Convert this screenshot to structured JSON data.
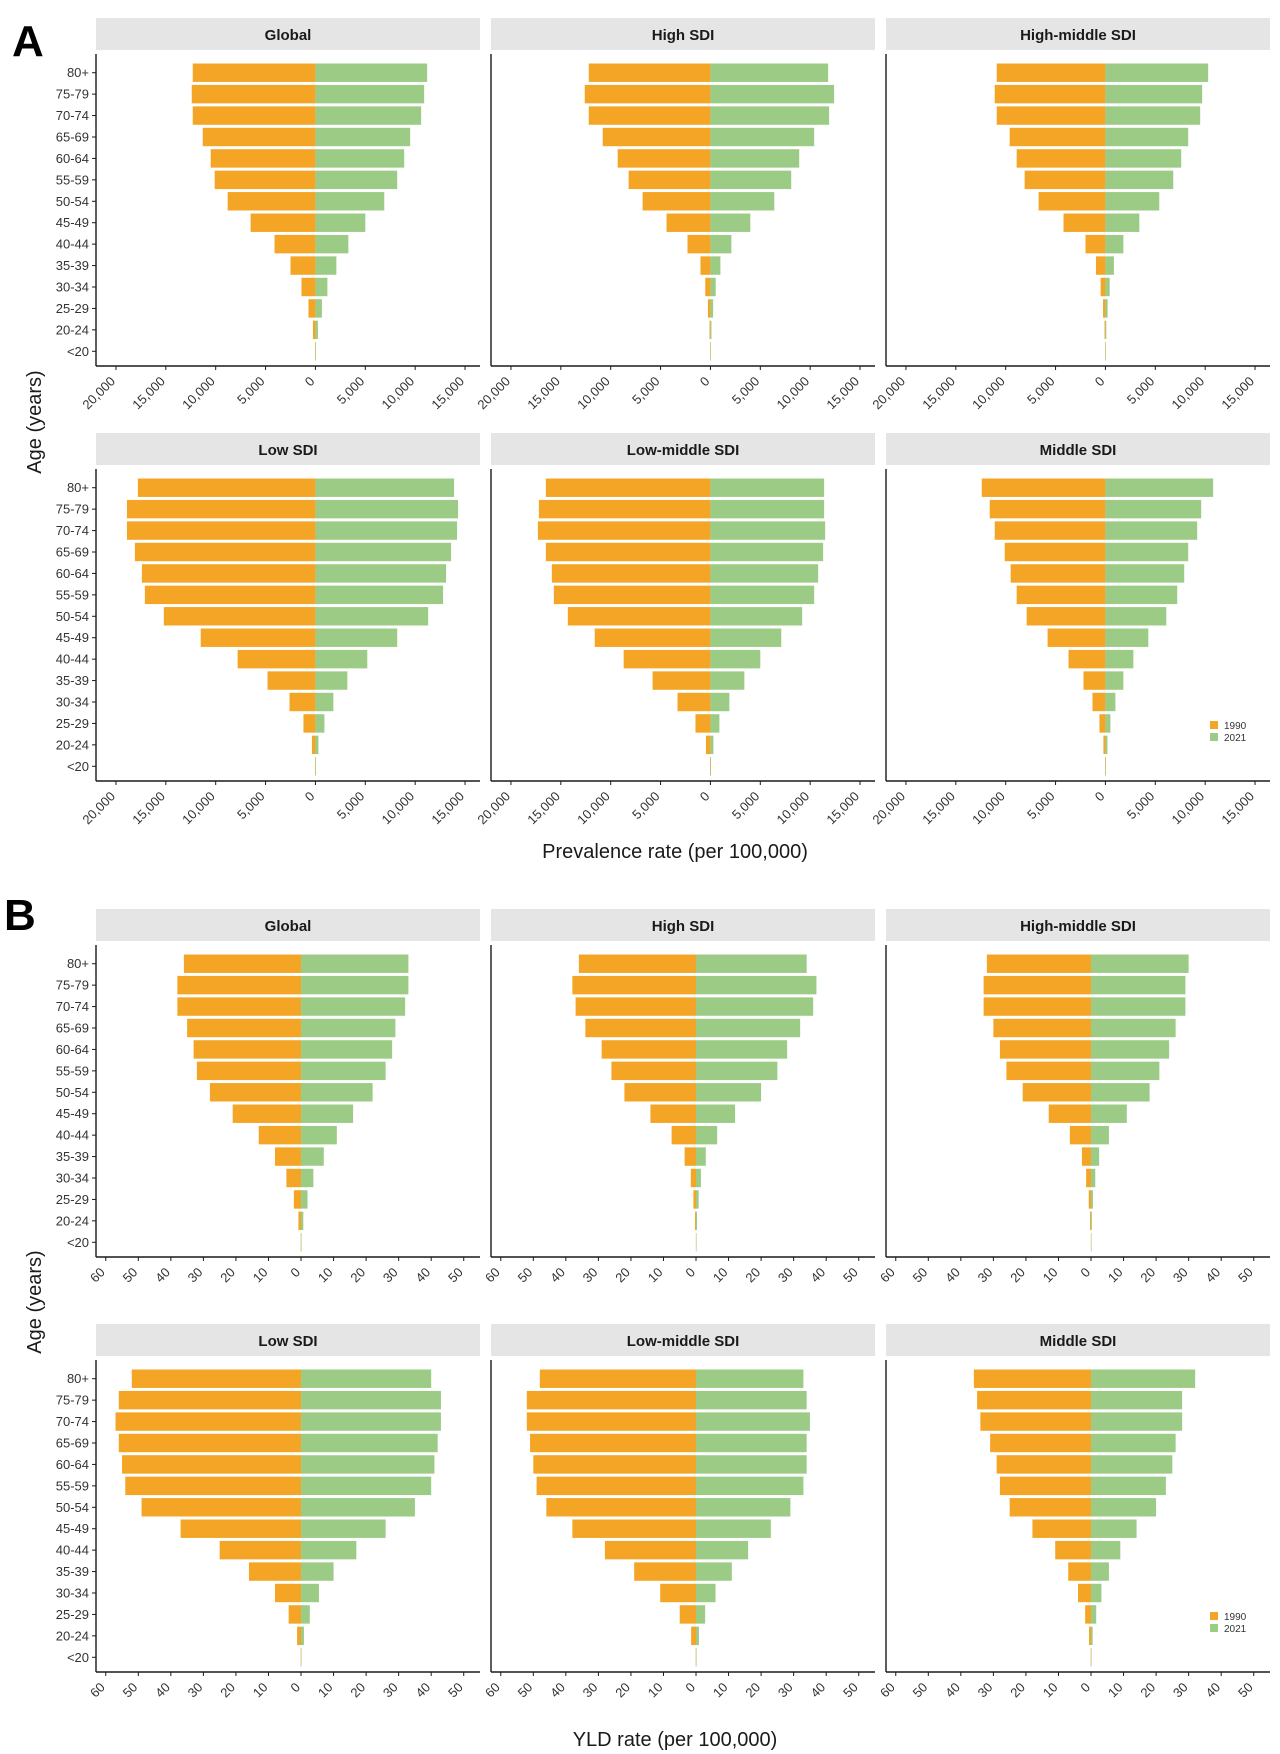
{
  "colors": {
    "y1990": "#F4A525",
    "y2021": "#9CCB86",
    "strip": "#E5E5E5",
    "axis": "#1a1a1a"
  },
  "legend": {
    "y1990": "1990",
    "y2021": "2021"
  },
  "age_groups": [
    "80+",
    "75-79",
    "70-74",
    "65-69",
    "60-64",
    "55-59",
    "50-54",
    "45-49",
    "40-44",
    "35-39",
    "30-34",
    "25-29",
    "20-24",
    "<20"
  ],
  "sections": [
    {
      "letter": "A",
      "y_title": "Age (years)",
      "x_title": "Prevalence rate (per 100,000)",
      "x_ticks": [
        "20,000",
        "15,000",
        "10,000",
        "5,000",
        "0",
        "5,000",
        "10,000",
        "15,000"
      ],
      "x_tick_values": [
        -20000,
        -15000,
        -10000,
        -5000,
        0,
        5000,
        10000,
        15000
      ],
      "xlim": [
        -22000,
        16500
      ]
    },
    {
      "letter": "B",
      "y_title": "Age (years)",
      "x_title": "YLD rate (per 100,000)",
      "x_ticks": [
        "60",
        "50",
        "40",
        "30",
        "20",
        "10",
        "0",
        "10",
        "20",
        "30",
        "40",
        "50"
      ],
      "x_tick_values": [
        -60,
        -50,
        -40,
        -30,
        -20,
        -10,
        0,
        10,
        20,
        30,
        40,
        50
      ],
      "xlim": [
        -63,
        55
      ]
    }
  ],
  "chart_data": [
    {
      "type": "bar",
      "title": "Prevalence rate (per 100,000)",
      "xlabel": "Prevalence rate (per 100,000)",
      "ylabel": "Age (years)",
      "categories": [
        "80+",
        "75-79",
        "70-74",
        "65-69",
        "60-64",
        "55-59",
        "50-54",
        "45-49",
        "40-44",
        "35-39",
        "30-34",
        "25-29",
        "20-24",
        "<20"
      ],
      "xlim": [
        -20000,
        15000
      ],
      "facets": [
        {
          "name": "Global",
          "series": [
            {
              "name": "1990",
              "values": [
                12300,
                12400,
                12300,
                11300,
                10500,
                10100,
                8800,
                6500,
                4100,
                2500,
                1400,
                700,
                250,
                30
              ]
            },
            {
              "name": "2021",
              "values": [
                11200,
                10900,
                10600,
                9500,
                8900,
                8200,
                6900,
                5000,
                3300,
                2100,
                1200,
                650,
                250,
                40
              ]
            }
          ]
        },
        {
          "name": "High SDI",
          "series": [
            {
              "name": "1990",
              "values": [
                12200,
                12600,
                12200,
                10800,
                9300,
                8200,
                6800,
                4400,
                2300,
                1000,
                520,
                250,
                90,
                20
              ]
            },
            {
              "name": "2021",
              "values": [
                11800,
                12400,
                11900,
                10400,
                8900,
                8100,
                6400,
                4000,
                2100,
                1000,
                530,
                270,
                100,
                20
              ]
            }
          ]
        },
        {
          "name": "High-middle SDI",
          "series": [
            {
              "name": "1990",
              "values": [
                10900,
                11100,
                10900,
                9600,
                8900,
                8100,
                6700,
                4200,
                2000,
                950,
                480,
                240,
                90,
                20
              ]
            },
            {
              "name": "2021",
              "values": [
                10300,
                9700,
                9500,
                8300,
                7600,
                6800,
                5400,
                3400,
                1800,
                850,
                430,
                220,
                90,
                20
              ]
            }
          ]
        },
        {
          "name": "Low SDI",
          "series": [
            {
              "name": "1990",
              "values": [
                17800,
                18900,
                18900,
                18100,
                17400,
                17100,
                15200,
                11500,
                7800,
                4800,
                2600,
                1200,
                350,
                30
              ]
            },
            {
              "name": "2021",
              "values": [
                13900,
                14300,
                14200,
                13600,
                13100,
                12800,
                11300,
                8200,
                5200,
                3200,
                1800,
                900,
                300,
                30
              ]
            }
          ]
        },
        {
          "name": "Low-middle SDI",
          "series": [
            {
              "name": "1990",
              "values": [
                16500,
                17200,
                17300,
                16500,
                15900,
                15700,
                14300,
                11600,
                8700,
                5800,
                3300,
                1500,
                450,
                40
              ]
            },
            {
              "name": "2021",
              "values": [
                11400,
                11400,
                11500,
                11300,
                10800,
                10400,
                9200,
                7100,
                5000,
                3400,
                1900,
                900,
                300,
                40
              ]
            }
          ]
        },
        {
          "name": "Middle SDI",
          "series": [
            {
              "name": "1990",
              "values": [
                12400,
                11600,
                11100,
                10100,
                9500,
                8900,
                7900,
                5800,
                3700,
                2200,
                1300,
                600,
                200,
                30
              ]
            },
            {
              "name": "2021",
              "values": [
                10800,
                9600,
                9200,
                8300,
                7900,
                7200,
                6100,
                4300,
                2800,
                1800,
                1000,
                500,
                200,
                30
              ]
            }
          ]
        }
      ],
      "legend": [
        "1990",
        "2021"
      ],
      "legend_position": "right-bottom",
      "grid": false
    },
    {
      "type": "bar",
      "title": "YLD rate (per 100,000)",
      "xlabel": "YLD rate (per 100,000)",
      "ylabel": "Age (years)",
      "categories": [
        "80+",
        "75-79",
        "70-74",
        "65-69",
        "60-64",
        "55-59",
        "50-54",
        "45-49",
        "40-44",
        "35-39",
        "30-34",
        "25-29",
        "20-24",
        "<20"
      ],
      "xlim": [
        -60,
        50
      ],
      "facets": [
        {
          "name": "Global",
          "series": [
            {
              "name": "1990",
              "values": [
                36,
                38,
                38,
                35,
                33,
                32,
                28,
                21,
                13,
                8,
                4.5,
                2.2,
                0.8,
                0.1
              ]
            },
            {
              "name": "2021",
              "values": [
                33,
                33,
                32,
                29,
                28,
                26,
                22,
                16,
                11,
                7,
                3.8,
                2,
                0.7,
                0.1
              ]
            }
          ]
        },
        {
          "name": "High SDI",
          "series": [
            {
              "name": "1990",
              "values": [
                36,
                38,
                37,
                34,
                29,
                26,
                22,
                14,
                7.5,
                3.5,
                1.6,
                0.8,
                0.3,
                0.05
              ]
            },
            {
              "name": "2021",
              "values": [
                34,
                37,
                36,
                32,
                28,
                25,
                20,
                12,
                6.5,
                3,
                1.5,
                0.8,
                0.3,
                0.05
              ]
            }
          ]
        },
        {
          "name": "High-middle SDI",
          "series": [
            {
              "name": "1990",
              "values": [
                32,
                33,
                33,
                30,
                28,
                26,
                21,
                13,
                6.5,
                2.8,
                1.5,
                0.7,
                0.3,
                0.05
              ]
            },
            {
              "name": "2021",
              "values": [
                30,
                29,
                29,
                26,
                24,
                21,
                18,
                11,
                5.5,
                2.5,
                1.3,
                0.6,
                0.25,
                0.05
              ]
            }
          ]
        },
        {
          "name": "Low SDI",
          "series": [
            {
              "name": "1990",
              "values": [
                52,
                56,
                57,
                56,
                55,
                54,
                49,
                37,
                25,
                16,
                8,
                3.8,
                1.2,
                0.1
              ]
            },
            {
              "name": "2021",
              "values": [
                40,
                43,
                43,
                42,
                41,
                40,
                35,
                26,
                17,
                10,
                5.5,
                2.7,
                0.9,
                0.1
              ]
            }
          ]
        },
        {
          "name": "Low-middle SDI",
          "series": [
            {
              "name": "1990",
              "values": [
                48,
                52,
                52,
                51,
                50,
                49,
                46,
                38,
                28,
                19,
                11,
                5,
                1.5,
                0.1
              ]
            },
            {
              "name": "2021",
              "values": [
                33,
                34,
                35,
                34,
                34,
                33,
                29,
                23,
                16,
                11,
                6,
                2.8,
                0.9,
                0.1
              ]
            }
          ]
        },
        {
          "name": "Middle SDI",
          "series": [
            {
              "name": "1990",
              "values": [
                36,
                35,
                34,
                31,
                29,
                28,
                25,
                18,
                11,
                7,
                4,
                1.8,
                0.6,
                0.1
              ]
            },
            {
              "name": "2021",
              "values": [
                32,
                28,
                28,
                26,
                25,
                23,
                20,
                14,
                9,
                5.5,
                3.2,
                1.6,
                0.5,
                0.1
              ]
            }
          ]
        }
      ],
      "legend": [
        "1990",
        "2021"
      ],
      "legend_position": "right-bottom",
      "grid": false
    }
  ]
}
